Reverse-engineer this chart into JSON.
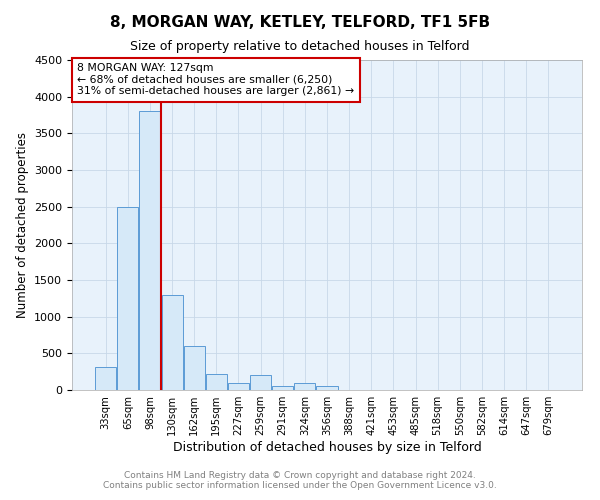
{
  "title": "8, MORGAN WAY, KETLEY, TELFORD, TF1 5FB",
  "subtitle": "Size of property relative to detached houses in Telford",
  "xlabel": "Distribution of detached houses by size in Telford",
  "ylabel": "Number of detached properties",
  "footer_line1": "Contains HM Land Registry data © Crown copyright and database right 2024.",
  "footer_line2": "Contains public sector information licensed under the Open Government Licence v3.0.",
  "annotation_line1": "8 MORGAN WAY: 127sqm",
  "annotation_line2": "← 68% of detached houses are smaller (6,250)",
  "annotation_line3": "31% of semi-detached houses are larger (2,861) →",
  "bar_color": "#d6e9f8",
  "bar_edge_color": "#5b9bd5",
  "vline_color": "#cc0000",
  "annotation_box_edge": "#cc0000",
  "categories": [
    "33sqm",
    "65sqm",
    "98sqm",
    "130sqm",
    "162sqm",
    "195sqm",
    "227sqm",
    "259sqm",
    "291sqm",
    "324sqm",
    "356sqm",
    "388sqm",
    "421sqm",
    "453sqm",
    "485sqm",
    "518sqm",
    "550sqm",
    "582sqm",
    "614sqm",
    "647sqm",
    "679sqm"
  ],
  "values": [
    320,
    2500,
    3800,
    1300,
    600,
    220,
    100,
    200,
    50,
    100,
    50,
    5,
    3,
    2,
    1,
    1,
    0,
    0,
    0,
    0,
    0
  ],
  "ylim": [
    0,
    4500
  ],
  "yticks": [
    0,
    500,
    1000,
    1500,
    2000,
    2500,
    3000,
    3500,
    4000,
    4500
  ],
  "vline_x_index": 2.48,
  "background_color": "#ffffff",
  "ax_facecolor": "#e8f2fb",
  "grid_color": "#c8d8e8"
}
